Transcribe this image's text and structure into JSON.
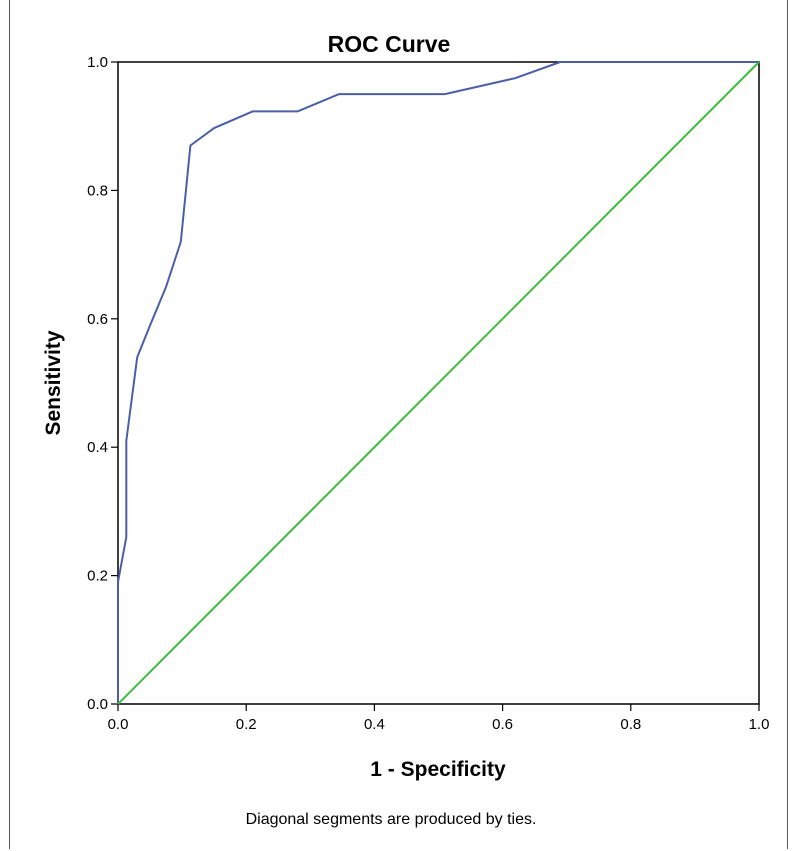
{
  "chart_data": {
    "type": "line",
    "title": "ROC Curve",
    "xlabel": "1 - Specificity",
    "ylabel": "Sensitivity",
    "xlim": [
      0.0,
      1.0
    ],
    "ylim": [
      0.0,
      1.0
    ],
    "x_ticks": [
      "0.0",
      "0.2",
      "0.4",
      "0.6",
      "0.8",
      "1.0"
    ],
    "y_ticks": [
      "0.0",
      "0.2",
      "0.4",
      "0.6",
      "0.8",
      "1.0"
    ],
    "grid": false,
    "series": [
      {
        "color": "#4a5fa8",
        "x": [
          0.0,
          0.0,
          0.013,
          0.013,
          0.03,
          0.05,
          0.075,
          0.098,
          0.113,
          0.15,
          0.21,
          0.28,
          0.345,
          0.51,
          0.62,
          0.69,
          1.0
        ],
        "y": [
          0.0,
          0.19,
          0.26,
          0.41,
          0.54,
          0.59,
          0.65,
          0.72,
          0.87,
          0.897,
          0.923,
          0.923,
          0.95,
          0.95,
          0.975,
          1.0,
          1.0
        ]
      },
      {
        "color": "#3dbb3d",
        "x": [
          0.0,
          1.0
        ],
        "y": [
          0.0,
          1.0
        ]
      }
    ],
    "footnote": "Diagonal segments are produced by ties."
  }
}
